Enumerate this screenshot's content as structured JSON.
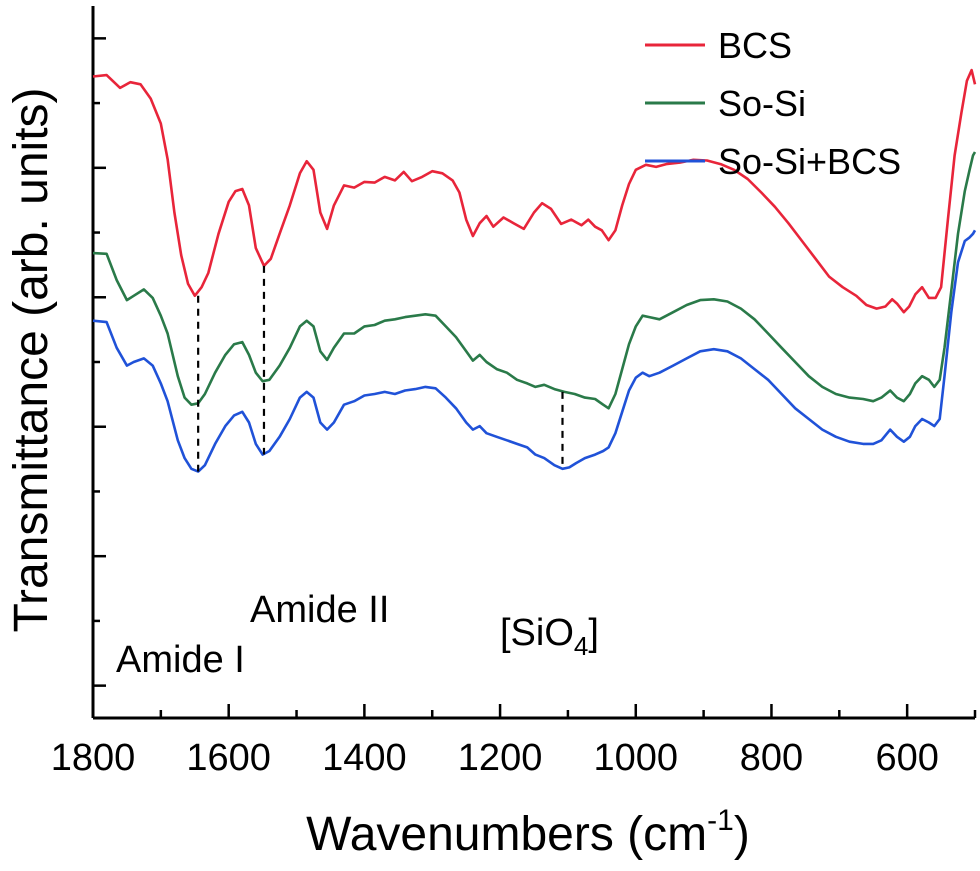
{
  "chart_data": {
    "type": "line",
    "xlabel": "Wavenumbers (cm",
    "xlabel_sup": "-1",
    "xlabel_close": ")",
    "ylabel": "Transmittance (arb. units)",
    "xlim": [
      1800,
      500
    ],
    "x_reversed": true,
    "xticks": [
      1800,
      1600,
      1400,
      1200,
      1000,
      800,
      600
    ],
    "xtick_labels": [
      "1800",
      "1600",
      "1400",
      "1200",
      "1000",
      "800",
      "600"
    ],
    "ylim": [
      0,
      100
    ],
    "grid": false,
    "legend_position": "top-right",
    "series": [
      {
        "name": "BCS",
        "color": "#e8253a",
        "points": [
          [
            1800,
            90.1
          ],
          [
            1780,
            90.3
          ],
          [
            1760,
            88.5
          ],
          [
            1745,
            89.3
          ],
          [
            1730,
            89.0
          ],
          [
            1715,
            87.0
          ],
          [
            1700,
            83.5
          ],
          [
            1690,
            78.5
          ],
          [
            1680,
            71.0
          ],
          [
            1670,
            65.0
          ],
          [
            1660,
            61.0
          ],
          [
            1650,
            59.3
          ],
          [
            1640,
            60.5
          ],
          [
            1630,
            62.5
          ],
          [
            1615,
            68.0
          ],
          [
            1600,
            72.5
          ],
          [
            1590,
            74.0
          ],
          [
            1580,
            74.3
          ],
          [
            1570,
            72.0
          ],
          [
            1560,
            66.0
          ],
          [
            1548,
            63.5
          ],
          [
            1538,
            64.5
          ],
          [
            1525,
            68.0
          ],
          [
            1510,
            72.0
          ],
          [
            1495,
            76.5
          ],
          [
            1485,
            78.2
          ],
          [
            1475,
            77.0
          ],
          [
            1465,
            71.0
          ],
          [
            1455,
            68.7
          ],
          [
            1445,
            72.0
          ],
          [
            1430,
            74.8
          ],
          [
            1415,
            74.5
          ],
          [
            1400,
            75.3
          ],
          [
            1385,
            75.2
          ],
          [
            1370,
            76.0
          ],
          [
            1355,
            75.5
          ],
          [
            1342,
            76.7
          ],
          [
            1330,
            75.4
          ],
          [
            1315,
            76.0
          ],
          [
            1300,
            76.8
          ],
          [
            1285,
            76.5
          ],
          [
            1270,
            75.5
          ],
          [
            1260,
            73.8
          ],
          [
            1250,
            70.0
          ],
          [
            1240,
            67.7
          ],
          [
            1230,
            69.5
          ],
          [
            1220,
            70.5
          ],
          [
            1210,
            69.0
          ],
          [
            1195,
            70.3
          ],
          [
            1180,
            69.5
          ],
          [
            1165,
            68.7
          ],
          [
            1150,
            71.0
          ],
          [
            1138,
            72.3
          ],
          [
            1125,
            71.5
          ],
          [
            1110,
            69.4
          ],
          [
            1095,
            70.0
          ],
          [
            1080,
            69.2
          ],
          [
            1070,
            70.0
          ],
          [
            1060,
            69.0
          ],
          [
            1050,
            68.5
          ],
          [
            1040,
            67.1
          ],
          [
            1030,
            68.5
          ],
          [
            1020,
            72.0
          ],
          [
            1010,
            75.0
          ],
          [
            1000,
            77.0
          ],
          [
            985,
            77.7
          ],
          [
            970,
            77.4
          ],
          [
            955,
            77.8
          ],
          [
            935,
            78.0
          ],
          [
            915,
            78.4
          ],
          [
            895,
            78.3
          ],
          [
            875,
            77.8
          ],
          [
            855,
            77.0
          ],
          [
            835,
            75.7
          ],
          [
            815,
            73.8
          ],
          [
            795,
            71.8
          ],
          [
            775,
            69.5
          ],
          [
            755,
            67.0
          ],
          [
            735,
            64.5
          ],
          [
            715,
            62.0
          ],
          [
            695,
            60.5
          ],
          [
            675,
            59.3
          ],
          [
            660,
            58.0
          ],
          [
            645,
            57.5
          ],
          [
            632,
            57.8
          ],
          [
            622,
            58.8
          ],
          [
            615,
            58.2
          ],
          [
            605,
            57.0
          ],
          [
            597,
            57.8
          ],
          [
            588,
            59.5
          ],
          [
            578,
            60.5
          ],
          [
            568,
            59.0
          ],
          [
            558,
            59.0
          ],
          [
            550,
            60.5
          ],
          [
            540,
            70.0
          ],
          [
            530,
            79.0
          ],
          [
            520,
            85.0
          ],
          [
            512,
            89.5
          ],
          [
            505,
            91.0
          ],
          [
            500,
            89.0
          ]
        ]
      },
      {
        "name": "So-Si",
        "color": "#2a7a49",
        "points": [
          [
            1800,
            65.3
          ],
          [
            1780,
            65.2
          ],
          [
            1765,
            61.5
          ],
          [
            1750,
            58.7
          ],
          [
            1740,
            59.3
          ],
          [
            1725,
            60.2
          ],
          [
            1712,
            59.0
          ],
          [
            1700,
            56.5
          ],
          [
            1690,
            54.0
          ],
          [
            1675,
            48.0
          ],
          [
            1665,
            45.0
          ],
          [
            1655,
            44.0
          ],
          [
            1645,
            44.2
          ],
          [
            1635,
            45.5
          ],
          [
            1620,
            48.5
          ],
          [
            1605,
            51.0
          ],
          [
            1592,
            52.5
          ],
          [
            1580,
            52.8
          ],
          [
            1570,
            51.0
          ],
          [
            1560,
            48.5
          ],
          [
            1550,
            47.3
          ],
          [
            1540,
            47.5
          ],
          [
            1525,
            49.5
          ],
          [
            1510,
            52.0
          ],
          [
            1495,
            55.0
          ],
          [
            1485,
            55.8
          ],
          [
            1475,
            55.0
          ],
          [
            1465,
            51.5
          ],
          [
            1455,
            50.3
          ],
          [
            1445,
            52.0
          ],
          [
            1430,
            54.0
          ],
          [
            1415,
            54.0
          ],
          [
            1400,
            55.0
          ],
          [
            1385,
            55.2
          ],
          [
            1370,
            55.8
          ],
          [
            1355,
            56.0
          ],
          [
            1340,
            56.3
          ],
          [
            1325,
            56.5
          ],
          [
            1310,
            56.7
          ],
          [
            1295,
            56.5
          ],
          [
            1280,
            55.0
          ],
          [
            1265,
            53.5
          ],
          [
            1250,
            51.5
          ],
          [
            1240,
            50.2
          ],
          [
            1230,
            51.0
          ],
          [
            1220,
            50.0
          ],
          [
            1205,
            49.0
          ],
          [
            1190,
            48.5
          ],
          [
            1175,
            47.5
          ],
          [
            1160,
            47.0
          ],
          [
            1148,
            46.5
          ],
          [
            1135,
            46.8
          ],
          [
            1120,
            46.2
          ],
          [
            1105,
            45.8
          ],
          [
            1090,
            45.5
          ],
          [
            1075,
            45.0
          ],
          [
            1060,
            44.8
          ],
          [
            1048,
            44.0
          ],
          [
            1040,
            43.5
          ],
          [
            1030,
            45.5
          ],
          [
            1020,
            49.0
          ],
          [
            1010,
            52.5
          ],
          [
            1000,
            55.0
          ],
          [
            990,
            56.5
          ],
          [
            980,
            56.3
          ],
          [
            965,
            56.0
          ],
          [
            945,
            57.0
          ],
          [
            925,
            58.0
          ],
          [
            905,
            58.7
          ],
          [
            885,
            58.8
          ],
          [
            865,
            58.5
          ],
          [
            845,
            57.5
          ],
          [
            825,
            56.0
          ],
          [
            805,
            54.0
          ],
          [
            785,
            52.0
          ],
          [
            765,
            50.0
          ],
          [
            745,
            48.0
          ],
          [
            725,
            46.5
          ],
          [
            705,
            45.5
          ],
          [
            685,
            45.0
          ],
          [
            665,
            44.8
          ],
          [
            650,
            44.5
          ],
          [
            638,
            45.0
          ],
          [
            625,
            46.0
          ],
          [
            615,
            45.0
          ],
          [
            605,
            44.5
          ],
          [
            596,
            45.5
          ],
          [
            588,
            47.0
          ],
          [
            578,
            48.0
          ],
          [
            568,
            47.5
          ],
          [
            560,
            46.5
          ],
          [
            552,
            47.5
          ],
          [
            545,
            52.0
          ],
          [
            535,
            60.0
          ],
          [
            525,
            68.0
          ],
          [
            515,
            74.0
          ],
          [
            508,
            77.0
          ],
          [
            503,
            79.0
          ],
          [
            500,
            79.5
          ]
        ]
      },
      {
        "name": "So-Si+BCS",
        "color": "#2052d8",
        "points": [
          [
            1800,
            55.8
          ],
          [
            1780,
            55.6
          ],
          [
            1765,
            52.0
          ],
          [
            1750,
            49.5
          ],
          [
            1740,
            50.0
          ],
          [
            1725,
            50.5
          ],
          [
            1712,
            49.5
          ],
          [
            1700,
            47.0
          ],
          [
            1690,
            44.5
          ],
          [
            1675,
            39.0
          ],
          [
            1665,
            36.5
          ],
          [
            1655,
            35.0
          ],
          [
            1645,
            34.6
          ],
          [
            1635,
            35.5
          ],
          [
            1620,
            38.5
          ],
          [
            1605,
            41.0
          ],
          [
            1592,
            42.5
          ],
          [
            1580,
            43.0
          ],
          [
            1570,
            41.5
          ],
          [
            1560,
            38.5
          ],
          [
            1550,
            37.0
          ],
          [
            1540,
            37.5
          ],
          [
            1525,
            39.5
          ],
          [
            1510,
            42.0
          ],
          [
            1495,
            45.0
          ],
          [
            1485,
            45.8
          ],
          [
            1475,
            45.0
          ],
          [
            1465,
            41.5
          ],
          [
            1455,
            40.5
          ],
          [
            1445,
            41.5
          ],
          [
            1430,
            44.0
          ],
          [
            1415,
            44.5
          ],
          [
            1400,
            45.3
          ],
          [
            1385,
            45.5
          ],
          [
            1370,
            45.8
          ],
          [
            1355,
            45.5
          ],
          [
            1340,
            46.0
          ],
          [
            1325,
            46.2
          ],
          [
            1310,
            46.5
          ],
          [
            1295,
            46.3
          ],
          [
            1280,
            45.0
          ],
          [
            1265,
            43.5
          ],
          [
            1250,
            41.5
          ],
          [
            1240,
            40.5
          ],
          [
            1230,
            41.0
          ],
          [
            1220,
            40.0
          ],
          [
            1205,
            39.5
          ],
          [
            1190,
            39.0
          ],
          [
            1175,
            38.5
          ],
          [
            1160,
            38.0
          ],
          [
            1148,
            37.0
          ],
          [
            1135,
            36.5
          ],
          [
            1120,
            35.5
          ],
          [
            1108,
            35.0
          ],
          [
            1098,
            35.2
          ],
          [
            1088,
            35.8
          ],
          [
            1075,
            36.5
          ],
          [
            1060,
            37.0
          ],
          [
            1048,
            37.5
          ],
          [
            1040,
            38.0
          ],
          [
            1030,
            40.0
          ],
          [
            1020,
            43.0
          ],
          [
            1010,
            46.0
          ],
          [
            1000,
            47.8
          ],
          [
            990,
            48.5
          ],
          [
            980,
            48.0
          ],
          [
            965,
            48.5
          ],
          [
            945,
            49.5
          ],
          [
            925,
            50.5
          ],
          [
            905,
            51.5
          ],
          [
            885,
            51.8
          ],
          [
            865,
            51.5
          ],
          [
            845,
            50.5
          ],
          [
            825,
            49.0
          ],
          [
            805,
            47.5
          ],
          [
            785,
            45.5
          ],
          [
            765,
            43.5
          ],
          [
            745,
            42.0
          ],
          [
            725,
            40.5
          ],
          [
            705,
            39.5
          ],
          [
            685,
            38.8
          ],
          [
            665,
            38.5
          ],
          [
            650,
            38.5
          ],
          [
            638,
            39.0
          ],
          [
            625,
            40.5
          ],
          [
            615,
            39.5
          ],
          [
            605,
            38.8
          ],
          [
            596,
            39.5
          ],
          [
            588,
            41.0
          ],
          [
            578,
            42.0
          ],
          [
            568,
            41.5
          ],
          [
            560,
            41.0
          ],
          [
            552,
            42.0
          ],
          [
            545,
            48.0
          ],
          [
            535,
            57.0
          ],
          [
            525,
            64.0
          ],
          [
            515,
            67.0
          ],
          [
            508,
            67.5
          ],
          [
            503,
            68.0
          ],
          [
            500,
            68.5
          ]
        ]
      }
    ],
    "annotations": [
      {
        "text": "Amide I",
        "x": 1645
      },
      {
        "text": "Amide II",
        "x": 1548
      },
      {
        "text": "[SiO",
        "sub": "4",
        "close": "]",
        "x": 1108
      }
    ],
    "markers": [
      {
        "x": 1645,
        "y_from": 59.3,
        "y_to": 34.6
      },
      {
        "x": 1548,
        "y_from": 63.5,
        "y_to": 37.0
      },
      {
        "x": 1108,
        "y_from": 45.8,
        "y_to": 35.0
      }
    ]
  }
}
